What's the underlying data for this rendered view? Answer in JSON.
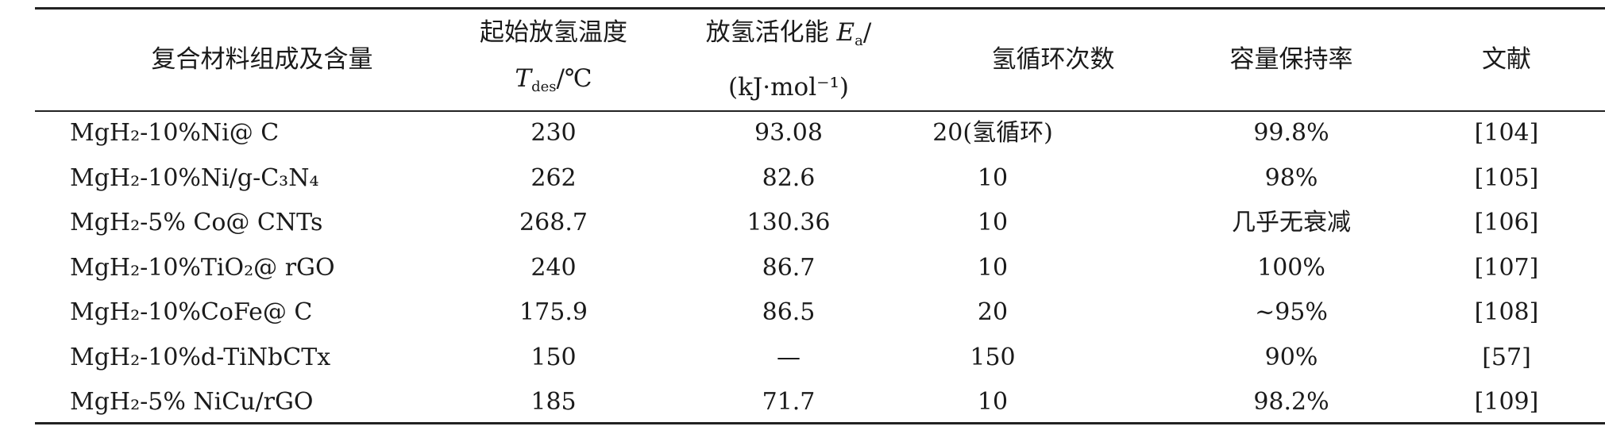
{
  "table": {
    "headers": [
      {
        "line1": "复合材料组成及含量"
      },
      {
        "line1": "起始放氢温度",
        "symbol": "T",
        "subscript": "des",
        "unit": "/℃"
      },
      {
        "line1": "放氢活化能",
        "symbol": "E",
        "subscript": "a",
        "unit": "/",
        "line2": "(kJ·mol⁻¹)"
      },
      {
        "line1": "氢循环次数"
      },
      {
        "line1": "容量保持率"
      },
      {
        "line1": "文献"
      }
    ],
    "rows": [
      [
        "MgH₂-10%Ni@ C",
        "230",
        "93.08",
        "20(氢循环)",
        "99.8%",
        "[104]"
      ],
      [
        "MgH₂-10%Ni/g-C₃N₄",
        "262",
        "82.6",
        "10",
        "98%",
        "[105]"
      ],
      [
        "MgH₂-5% Co@ CNTs",
        "268.7",
        "130.36",
        "10",
        "几乎无衰减",
        "[106]"
      ],
      [
        "MgH₂-10%TiO₂@ rGO",
        "240",
        "86.7",
        "10",
        "100%",
        "[107]"
      ],
      [
        "MgH₂-10%CoFe@ C",
        "175.9",
        "86.5",
        "20",
        "~95%",
        "[108]"
      ],
      [
        "MgH₂-10%d-TiNbCTx",
        "150",
        "—",
        "150",
        "90%",
        "[57]"
      ],
      [
        "MgH₂-5% NiCu/rGO",
        "185",
        "71.7",
        "10",
        "98.2%",
        "[109]"
      ]
    ]
  }
}
